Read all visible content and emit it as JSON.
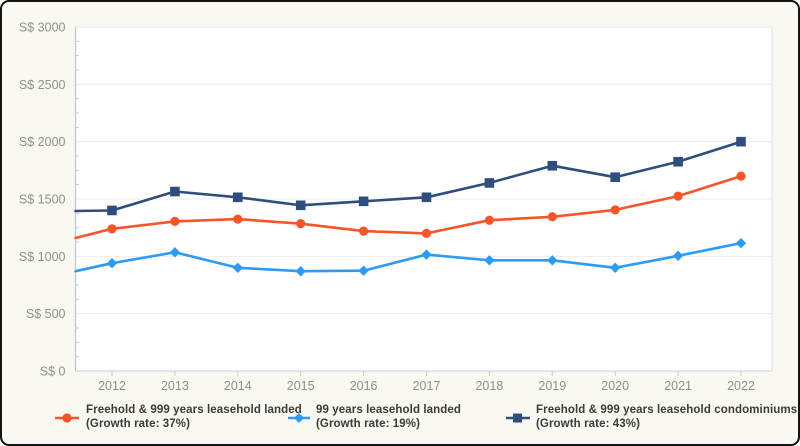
{
  "frame": {
    "background_color": "#FBF7F1",
    "border_color": "#141414",
    "plot_background_color": "#FFFFFF"
  },
  "axis_style": {
    "label_color": "#8F8F8F",
    "gridline_color": "#EDEDED",
    "y_axis_line_color": "#B9C7E3",
    "x_axis_line_color": "#C6D0E4",
    "right_border_color": "#DCE3F2",
    "tick_color": "#C9C9C9"
  },
  "chart_data": {
    "type": "line",
    "categories": [
      "2012",
      "2013",
      "2014",
      "2015",
      "2016",
      "2017",
      "2018",
      "2019",
      "2020",
      "2021",
      "2022"
    ],
    "ylim": [
      0,
      3000
    ],
    "y_tick_interval": 500,
    "y_minor_tick_interval": 125,
    "grid": "horizontal gridlines on",
    "legend_position": "bottom",
    "y_ticks": [
      {
        "value": 3000,
        "label": "S$ 3000"
      },
      {
        "value": 2500,
        "label": "S$ 2500"
      },
      {
        "value": 2000,
        "label": "S$ 2000"
      },
      {
        "value": 1500,
        "label": "S$ 1500"
      },
      {
        "value": 1000,
        "label": "S$ 1000"
      },
      {
        "value": 500,
        "label": "S$ 500"
      },
      {
        "value": 0,
        "label": "S$ 0"
      }
    ],
    "series": [
      {
        "name": "Freehold & 999 years leasehold landed",
        "legend_line2": "(Growth rate: 37%)",
        "growth_rate": "37%",
        "color": "#F4562A",
        "marker": "circle",
        "edge_start_value": 1160,
        "values": [
          1240,
          1305,
          1325,
          1285,
          1220,
          1200,
          1315,
          1345,
          1405,
          1525,
          1700
        ]
      },
      {
        "name": "99 years leasehold landed",
        "legend_line2": "(Growth rate: 19%)",
        "growth_rate": "19%",
        "color": "#2E9BF3",
        "marker": "diamond",
        "edge_start_value": 870,
        "values": [
          940,
          1035,
          900,
          870,
          875,
          1015,
          965,
          965,
          900,
          1005,
          1115
        ]
      },
      {
        "name": "Freehold & 999 years leasehold condominiums",
        "legend_line2": "(Growth rate: 43%)",
        "growth_rate": "43%",
        "color": "#2F4E7E",
        "marker": "square",
        "edge_start_value": 1395,
        "values": [
          1400,
          1565,
          1515,
          1445,
          1480,
          1515,
          1640,
          1790,
          1690,
          1825,
          2000
        ]
      }
    ]
  }
}
